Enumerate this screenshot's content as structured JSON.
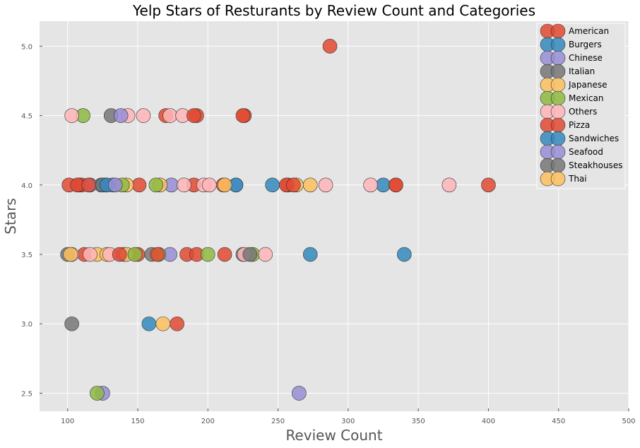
{
  "chart_data": {
    "type": "scatter",
    "title": "Yelp Stars of Resturants by Review Count and Categories",
    "xlabel": "Review Count",
    "ylabel": "Stars",
    "xlim": [
      80,
      500
    ],
    "ylim": [
      2.37,
      5.18
    ],
    "xticks": [
      "100",
      "150",
      "200",
      "250",
      "300",
      "350",
      "400",
      "450",
      "500"
    ],
    "xtick_values": [
      100,
      150,
      200,
      250,
      300,
      350,
      400,
      450,
      500
    ],
    "yticks": [
      "2.5",
      "3.0",
      "3.5",
      "4.0",
      "4.5",
      "5.0"
    ],
    "ytick_values": [
      2.5,
      3.0,
      3.5,
      4.0,
      4.5,
      5.0
    ],
    "grid": true,
    "legend_position": "top-right",
    "series": [
      {
        "name": "American",
        "color": "#E24A33",
        "points": [
          [
            287,
            5.0
          ],
          [
            170,
            4.5
          ],
          [
            192,
            4.5
          ],
          [
            226,
            4.5
          ],
          [
            101,
            4.0
          ],
          [
            108,
            4.0
          ],
          [
            110,
            4.0
          ],
          [
            151,
            4.0
          ],
          [
            190,
            4.0
          ],
          [
            211,
            4.0
          ],
          [
            257,
            4.0
          ],
          [
            334,
            4.0
          ],
          [
            400,
            4.0
          ],
          [
            112,
            3.5
          ],
          [
            150,
            3.5
          ],
          [
            185,
            3.5
          ],
          [
            192,
            3.5
          ],
          [
            212,
            3.5
          ],
          [
            178,
            3.0
          ]
        ]
      },
      {
        "name": "Burgers",
        "color": "#348ABD",
        "points": [
          [
            124,
            4.0
          ],
          [
            127,
            4.0
          ],
          [
            246,
            4.0
          ],
          [
            325,
            4.0
          ],
          [
            273,
            3.5
          ],
          [
            340,
            3.5
          ],
          [
            158,
            3.0
          ]
        ]
      },
      {
        "name": "Chinese",
        "color": "#988ED5",
        "points": [
          [
            116,
            4.0
          ],
          [
            132,
            4.0
          ],
          [
            174,
            4.0
          ],
          [
            220,
            4.0
          ],
          [
            140,
            3.5
          ],
          [
            173,
            3.5
          ],
          [
            265,
            2.5
          ],
          [
            125,
            2.5
          ]
        ]
      },
      {
        "name": "Italian",
        "color": "#777777",
        "points": [
          [
            131,
            4.5
          ],
          [
            125,
            4.0
          ],
          [
            160,
            3.5
          ],
          [
            225,
            3.5
          ],
          [
            103,
            3.0
          ]
        ]
      },
      {
        "name": "Japanese",
        "color": "#FBC15E",
        "points": [
          [
            142,
            4.0
          ],
          [
            166,
            4.0
          ],
          [
            263,
            4.0
          ],
          [
            273,
            4.0
          ],
          [
            121,
            3.5
          ],
          [
            128,
            3.5
          ],
          [
            142,
            3.5
          ],
          [
            168,
            3.0
          ]
        ]
      },
      {
        "name": "Mexican",
        "color": "#8EBA42",
        "points": [
          [
            111,
            4.5
          ],
          [
            139,
            4.0
          ],
          [
            163,
            4.0
          ],
          [
            148,
            3.5
          ],
          [
            165,
            3.5
          ],
          [
            200,
            3.5
          ],
          [
            232,
            3.5
          ],
          [
            121,
            2.5
          ]
        ]
      },
      {
        "name": "Others",
        "color": "#FFB5B8",
        "points": [
          [
            103,
            4.5
          ],
          [
            143,
            4.5
          ],
          [
            154,
            4.5
          ],
          [
            173,
            4.5
          ],
          [
            182,
            4.5
          ],
          [
            183,
            4.0
          ],
          [
            197,
            4.0
          ],
          [
            201,
            4.0
          ],
          [
            284,
            4.0
          ],
          [
            316,
            4.0
          ],
          [
            372,
            4.0
          ],
          [
            103,
            3.5
          ],
          [
            116,
            3.5
          ],
          [
            130,
            3.5
          ],
          [
            226,
            3.5
          ],
          [
            241,
            3.5
          ]
        ]
      },
      {
        "name": "Pizza",
        "color": "#E24A33",
        "points": [
          [
            190,
            4.5
          ],
          [
            225,
            4.5
          ],
          [
            107,
            4.0
          ],
          [
            115,
            4.0
          ],
          [
            256,
            4.0
          ],
          [
            261,
            4.0
          ],
          [
            334,
            4.0
          ],
          [
            137,
            3.5
          ],
          [
            164,
            3.5
          ]
        ]
      },
      {
        "name": "Sandwiches",
        "color": "#348ABD",
        "points": [
          [
            128,
            4.0
          ],
          [
            220,
            4.0
          ]
        ]
      },
      {
        "name": "Seafood",
        "color": "#988ED5",
        "points": [
          [
            138,
            4.5
          ],
          [
            134,
            4.0
          ]
        ]
      },
      {
        "name": "Steakhouses",
        "color": "#777777",
        "points": [
          [
            100,
            3.5
          ],
          [
            230,
            3.5
          ]
        ]
      },
      {
        "name": "Thai",
        "color": "#FBC15E",
        "points": [
          [
            212,
            4.0
          ],
          [
            102,
            3.5
          ]
        ]
      }
    ]
  }
}
